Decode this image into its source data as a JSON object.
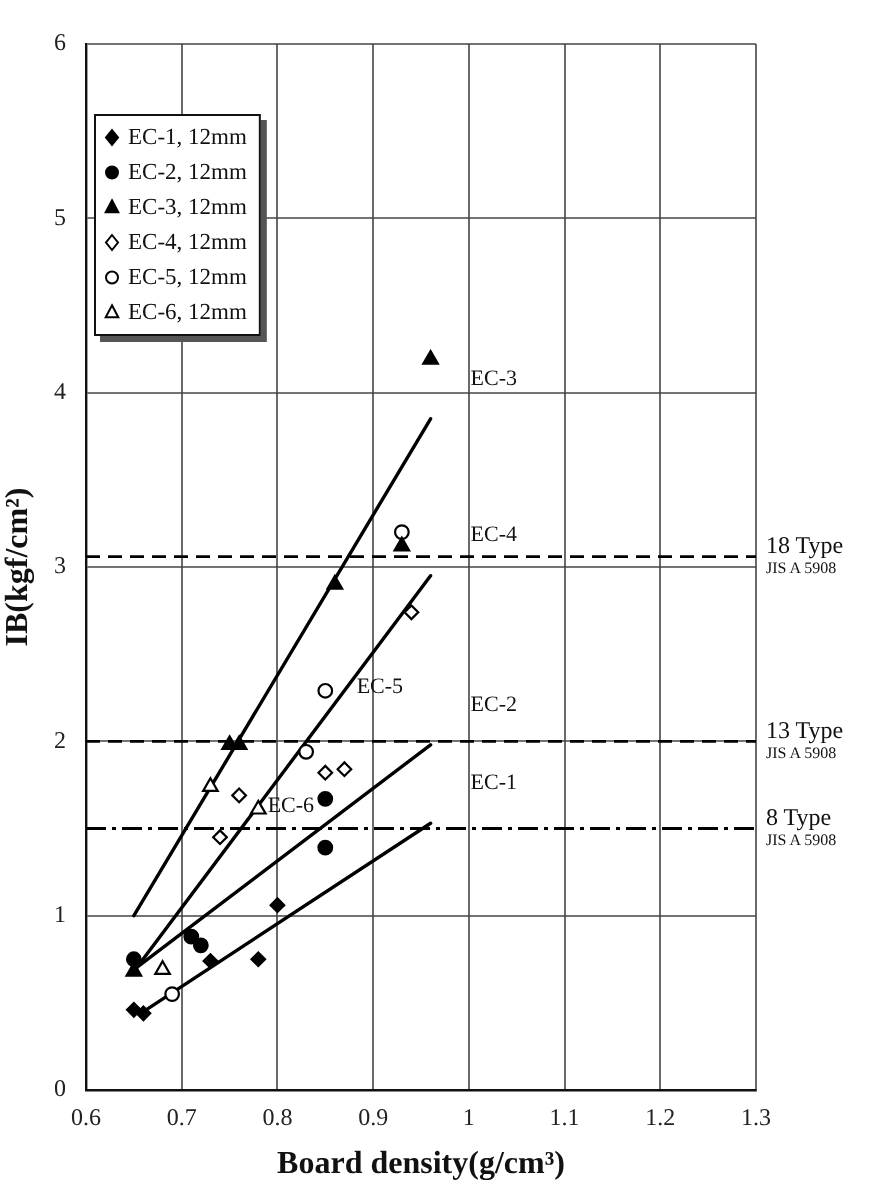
{
  "chart_data": {
    "type": "scatter",
    "xlabel": "Board density(g/cm³)",
    "ylabel": "IB(kgf/cm²)",
    "xlim": [
      0.6,
      1.3
    ],
    "xticks": [
      0.6,
      0.7,
      0.8,
      0.9,
      1,
      1.1,
      1.2,
      1.3
    ],
    "ylim": [
      0,
      6
    ],
    "yticks": [
      0,
      1,
      2,
      3,
      4,
      5,
      6
    ],
    "grid": true,
    "legend": "top left",
    "series": [
      {
        "name": "EC-1, 12mm",
        "color": "#000000",
        "marker": "diamond",
        "x": [
          0.65,
          0.66,
          0.73,
          0.78,
          0.8
        ],
        "values": [
          0.46,
          0.44,
          0.74,
          0.75,
          1.06
        ]
      },
      {
        "name": "EC-2, 12mm",
        "color": "#000000",
        "marker": "circle",
        "x": [
          0.65,
          0.71,
          0.72,
          0.85,
          0.85
        ],
        "values": [
          0.75,
          0.88,
          0.83,
          1.39,
          1.67
        ]
      },
      {
        "name": "EC-3, 12mm",
        "color": "#000000",
        "marker": "triangle",
        "x": [
          0.65,
          0.75,
          0.76,
          0.86,
          0.93,
          0.96
        ],
        "values": [
          0.68,
          1.98,
          1.98,
          2.9,
          3.12,
          4.19
        ]
      },
      {
        "name": "EC-4, 12mm",
        "color": "#ffffff",
        "marker": "diamond",
        "x": [
          0.74,
          0.76,
          0.85,
          0.87,
          0.94
        ],
        "values": [
          1.45,
          1.69,
          1.82,
          1.84,
          2.74
        ]
      },
      {
        "name": "EC-5, 12mm",
        "color": "#ffffff",
        "marker": "circle",
        "x": [
          0.69,
          0.83,
          0.85,
          0.93
        ],
        "values": [
          0.55,
          1.94,
          2.29,
          3.2
        ]
      },
      {
        "name": "EC-6, 12mm",
        "color": "#ffffff",
        "marker": "triangle",
        "x": [
          0.68,
          0.73,
          0.78
        ],
        "values": [
          0.69,
          1.74,
          1.61
        ]
      },
      {
        "type": "line",
        "color": "#000000",
        "marker": "none",
        "x": [
          0.65,
          0.96
        ],
        "values": [
          1.0,
          3.85
        ]
      },
      {
        "type": "line",
        "color": "#000000",
        "marker": "none",
        "x": [
          0.65,
          0.96
        ],
        "values": [
          0.68,
          2.95
        ]
      },
      {
        "type": "line",
        "color": "#000000",
        "marker": "none",
        "x": [
          0.65,
          0.96
        ],
        "values": [
          0.69,
          1.98
        ]
      },
      {
        "type": "line",
        "color": "#000000",
        "marker": "none",
        "x": [
          0.66,
          0.96
        ],
        "values": [
          0.45,
          1.53
        ]
      }
    ],
    "ref_lines": [
      {
        "axis": "y",
        "value": 3.06,
        "label": "18 Type\nJIS A 5908",
        "line_style": "dashed",
        "color": "#000000"
      },
      {
        "axis": "y",
        "value": 2,
        "label": "13 Type\nJIS A 5908",
        "line_style": "dashed",
        "color": "#000000"
      },
      {
        "axis": "y",
        "value": 1.5,
        "label": "8 Type\nJIS A 5908",
        "line_style": "dashdot",
        "color": "#000000"
      }
    ],
    "annotations": [
      {
        "text": "EC-3",
        "x": 0.96,
        "y": 3.85
      },
      {
        "text": "EC-4",
        "x": 0.96,
        "y": 2.95
      },
      {
        "text": "EC-5",
        "x": 0.841,
        "y": 2.08
      },
      {
        "text": "EC-2",
        "x": 0.96,
        "y": 1.98
      },
      {
        "text": "EC-1",
        "x": 0.96,
        "y": 1.53
      },
      {
        "text": "EC-6",
        "x": 0.748,
        "y": 1.4
      }
    ]
  }
}
